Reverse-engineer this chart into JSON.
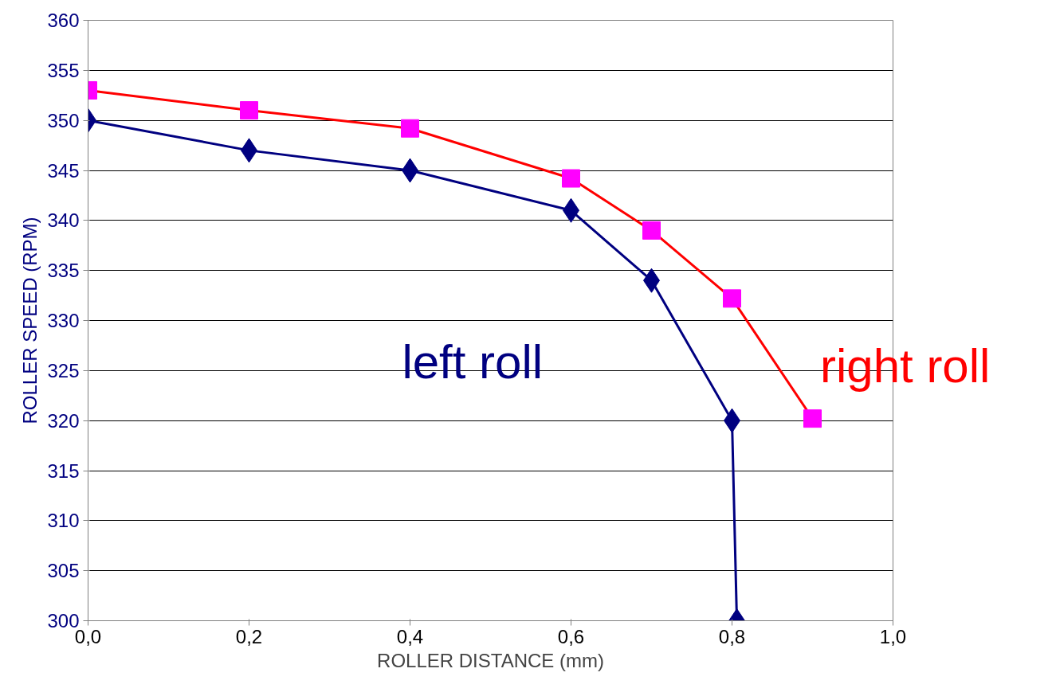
{
  "chart_data": {
    "type": "line",
    "xlabel": "ROLLER DISTANCE (mm)",
    "ylabel": "ROLLER SPEED (RPM)",
    "xlim": [
      0,
      1
    ],
    "xticks": [
      {
        "value": 0,
        "label": "0,0"
      },
      {
        "value": 0.2,
        "label": "0,2"
      },
      {
        "value": 0.4,
        "label": "0,4"
      },
      {
        "value": 0.6,
        "label": "0,6"
      },
      {
        "value": 0.8,
        "label": "0,8"
      },
      {
        "value": 1,
        "label": "1,0"
      }
    ],
    "ylim": [
      300,
      360
    ],
    "yticks": [
      300,
      305,
      310,
      315,
      320,
      325,
      330,
      335,
      340,
      345,
      350,
      355,
      360
    ],
    "grid": "y",
    "series": [
      {
        "name": "left roll",
        "color": "#000080",
        "marker": "diamond",
        "x": [
          0,
          0.2,
          0.4,
          0.6,
          0.7,
          0.8,
          0.806
        ],
        "values": [
          350,
          347,
          345,
          341,
          334,
          320,
          300
        ]
      },
      {
        "name": "right roll",
        "color": "#ff0000",
        "marker": "square",
        "x": [
          0,
          0.2,
          0.4,
          0.6,
          0.7,
          0.8,
          0.9
        ],
        "values": [
          353,
          351,
          349.2,
          344.2,
          339,
          332.2,
          320.2
        ]
      }
    ]
  }
}
